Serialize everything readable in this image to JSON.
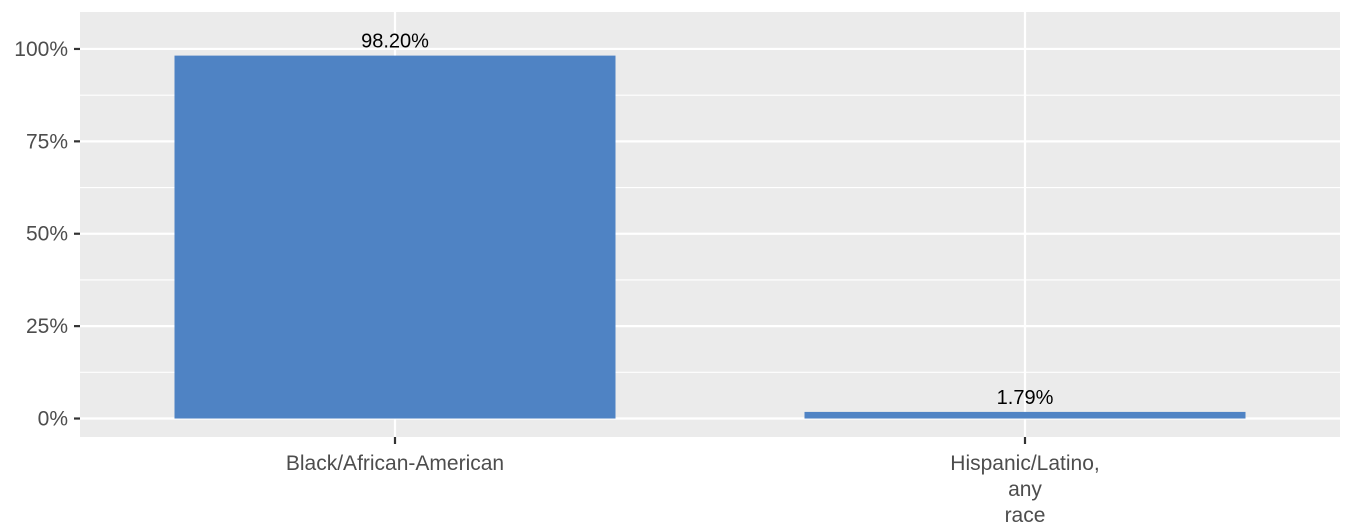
{
  "chart_data": {
    "type": "bar",
    "title": "",
    "xlabel": "",
    "ylabel": "",
    "categories": [
      [
        "Black/African-American"
      ],
      [
        "Hispanic/Latino,",
        "any",
        "race"
      ]
    ],
    "values": [
      98.2,
      1.79
    ],
    "data_labels": [
      "98.20%",
      "1.79%"
    ],
    "ylim": [
      -5,
      110
    ],
    "y_ticks": [
      0,
      25,
      50,
      75,
      100
    ],
    "y_tick_labels": [
      "0%",
      "25%",
      "50%",
      "75%",
      "100%"
    ],
    "grid": true,
    "legend": "none",
    "colors": {
      "bar": "#4f83c4",
      "panel": "#ebebeb",
      "grid": "#ffffff"
    }
  }
}
